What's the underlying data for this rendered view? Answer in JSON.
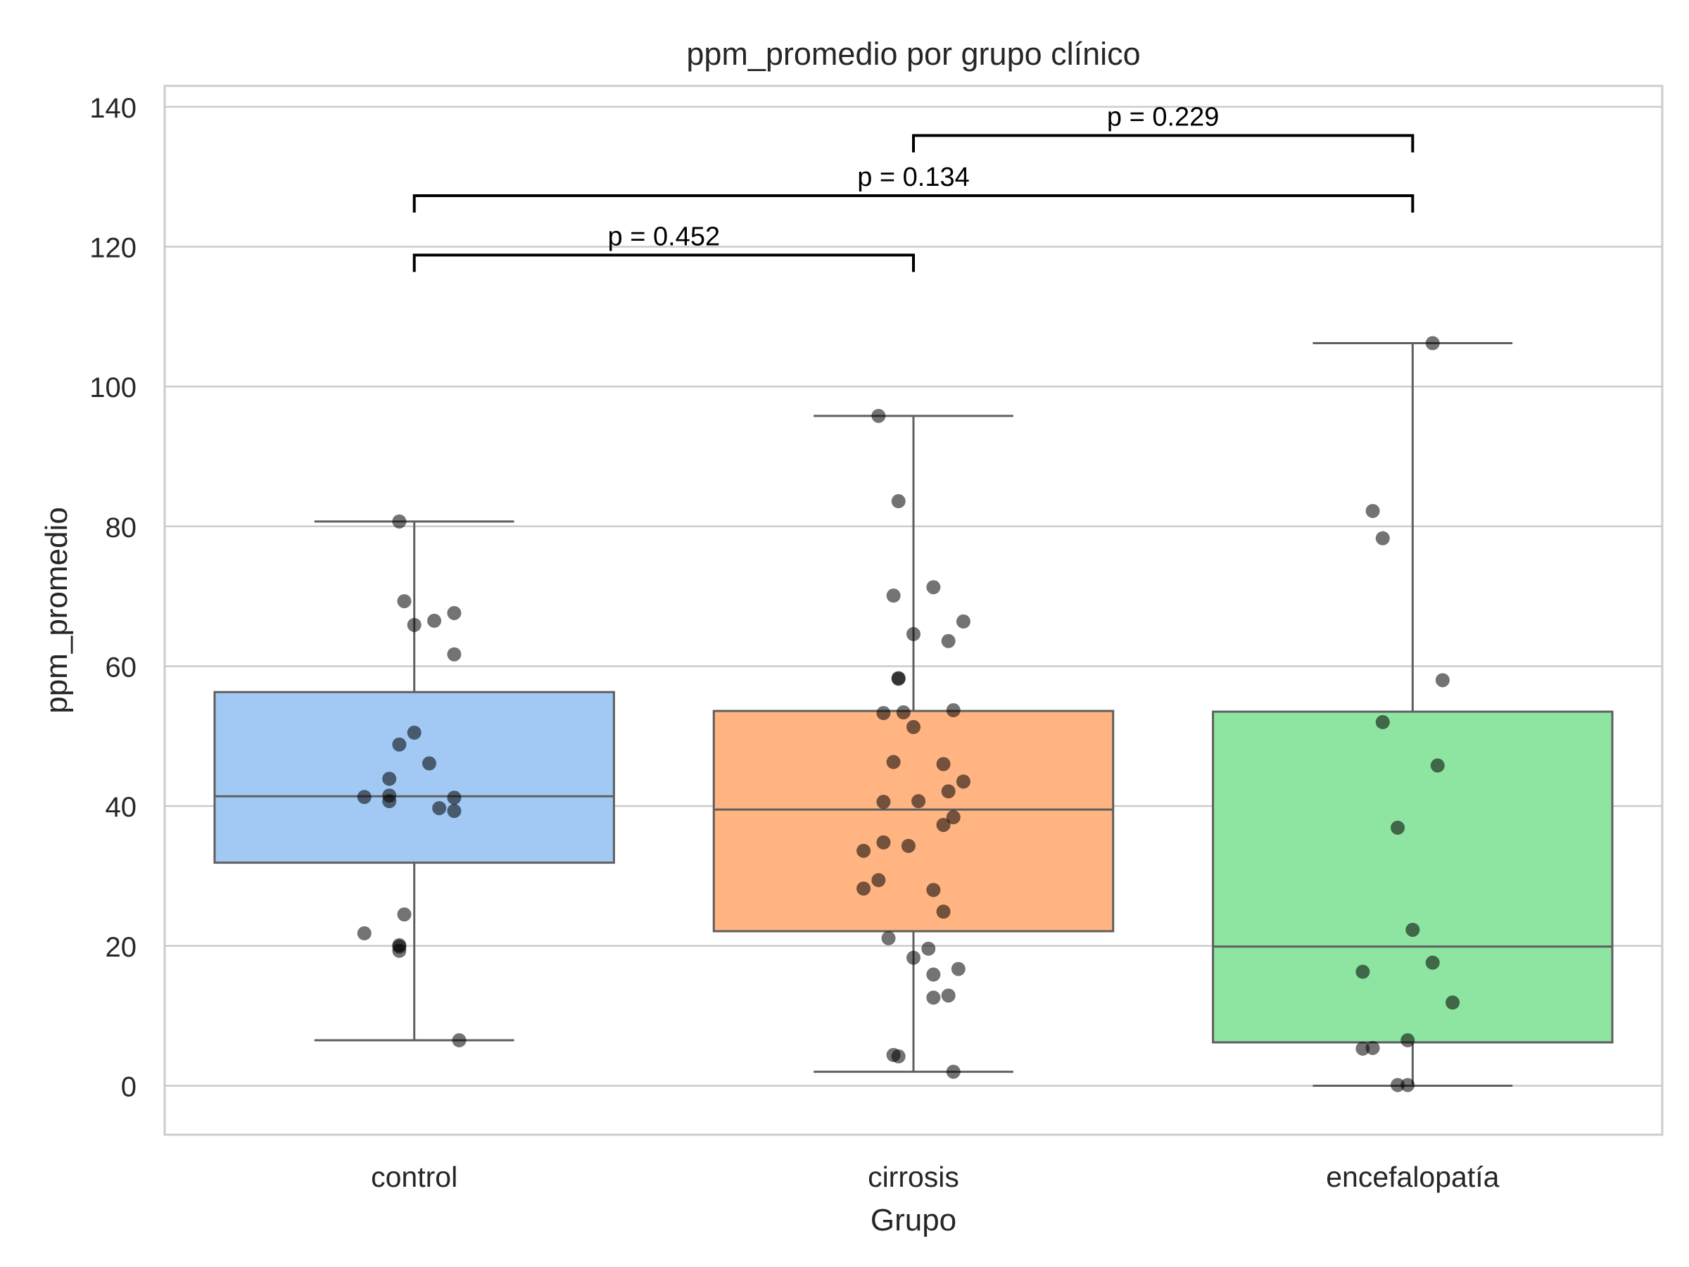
{
  "chart_data": {
    "type": "box",
    "title": "ppm_promedio por grupo clínico",
    "xlabel": "Grupo",
    "ylabel": "ppm_promedio",
    "ylim": [
      -7,
      143
    ],
    "yticks": [
      0,
      20,
      40,
      60,
      80,
      100,
      120,
      140
    ],
    "grid": "horizontal",
    "categories": [
      "control",
      "cirrosis",
      "encefalopatía"
    ],
    "colors": [
      "#a1c9f4",
      "#ffb482",
      "#8de5a1"
    ],
    "boxes": [
      {
        "name": "control",
        "q1": 31.9,
        "median": 41.4,
        "q3": 56.3,
        "whisker_low": 6.5,
        "whisker_high": 80.7
      },
      {
        "name": "cirrosis",
        "q1": 22.1,
        "median": 39.5,
        "q3": 53.6,
        "whisker_low": 2.0,
        "whisker_high": 95.8
      },
      {
        "name": "encefalopatía",
        "q1": 6.2,
        "median": 19.9,
        "q3": 53.5,
        "whisker_low": 0.0,
        "whisker_high": 106.2
      }
    ],
    "points": [
      [
        [
          -0.03,
          80.7
        ],
        [
          -0.02,
          69.3
        ],
        [
          0.0,
          65.9
        ],
        [
          0.04,
          66.5
        ],
        [
          0.08,
          67.6
        ],
        [
          0.08,
          61.7
        ],
        [
          0.0,
          50.5
        ],
        [
          -0.03,
          48.8
        ],
        [
          0.03,
          46.1
        ],
        [
          -0.05,
          43.9
        ],
        [
          -0.1,
          41.3
        ],
        [
          -0.05,
          41.5
        ],
        [
          -0.05,
          40.7
        ],
        [
          0.08,
          41.2
        ],
        [
          0.05,
          39.7
        ],
        [
          0.08,
          39.3
        ],
        [
          -0.02,
          24.5
        ],
        [
          -0.1,
          21.8
        ],
        [
          -0.03,
          20.1
        ],
        [
          -0.03,
          19.3
        ],
        [
          -0.03,
          19.9
        ],
        [
          0.09,
          6.5
        ]
      ],
      [
        [
          -0.07,
          95.8
        ],
        [
          -0.03,
          83.6
        ],
        [
          -0.04,
          70.1
        ],
        [
          0.04,
          71.3
        ],
        [
          0.1,
          66.4
        ],
        [
          0.0,
          64.6
        ],
        [
          0.07,
          63.6
        ],
        [
          -0.03,
          58.2
        ],
        [
          -0.03,
          58.3
        ],
        [
          -0.06,
          53.3
        ],
        [
          -0.02,
          53.4
        ],
        [
          0.0,
          51.3
        ],
        [
          0.08,
          53.7
        ],
        [
          -0.04,
          46.3
        ],
        [
          0.06,
          46.0
        ],
        [
          0.1,
          43.5
        ],
        [
          0.07,
          42.1
        ],
        [
          0.01,
          40.7
        ],
        [
          -0.06,
          40.6
        ],
        [
          0.08,
          38.4
        ],
        [
          0.06,
          37.3
        ],
        [
          -0.01,
          34.3
        ],
        [
          -0.06,
          34.8
        ],
        [
          -0.1,
          33.6
        ],
        [
          -0.07,
          29.4
        ],
        [
          -0.1,
          28.2
        ],
        [
          0.04,
          28.0
        ],
        [
          0.06,
          24.9
        ],
        [
          -0.05,
          21.1
        ],
        [
          0.03,
          19.6
        ],
        [
          0.0,
          18.3
        ],
        [
          0.09,
          16.7
        ],
        [
          0.04,
          15.9
        ],
        [
          0.04,
          12.6
        ],
        [
          0.07,
          12.9
        ],
        [
          -0.04,
          4.4
        ],
        [
          -0.03,
          4.2
        ],
        [
          0.08,
          2.0
        ]
      ],
      [
        [
          0.04,
          106.2
        ],
        [
          -0.08,
          82.2
        ],
        [
          -0.06,
          78.3
        ],
        [
          0.06,
          58.0
        ],
        [
          -0.06,
          52.0
        ],
        [
          0.05,
          45.8
        ],
        [
          -0.03,
          36.9
        ],
        [
          0.0,
          22.3
        ],
        [
          0.04,
          17.6
        ],
        [
          0.08,
          11.9
        ],
        [
          -0.1,
          16.3
        ],
        [
          -0.1,
          5.3
        ],
        [
          -0.08,
          5.4
        ],
        [
          -0.01,
          6.5
        ],
        [
          -0.03,
          0.1
        ],
        [
          -0.01,
          0.1
        ]
      ]
    ],
    "comparisons": [
      {
        "from": "control",
        "to": "cirrosis",
        "y": 118.8,
        "label": "p = 0.452"
      },
      {
        "from": "control",
        "to": "encefalopatía",
        "y": 127.3,
        "label": "p = 0.134"
      },
      {
        "from": "cirrosis",
        "to": "encefalopatía",
        "y": 135.9,
        "label": "p = 0.229"
      }
    ]
  }
}
